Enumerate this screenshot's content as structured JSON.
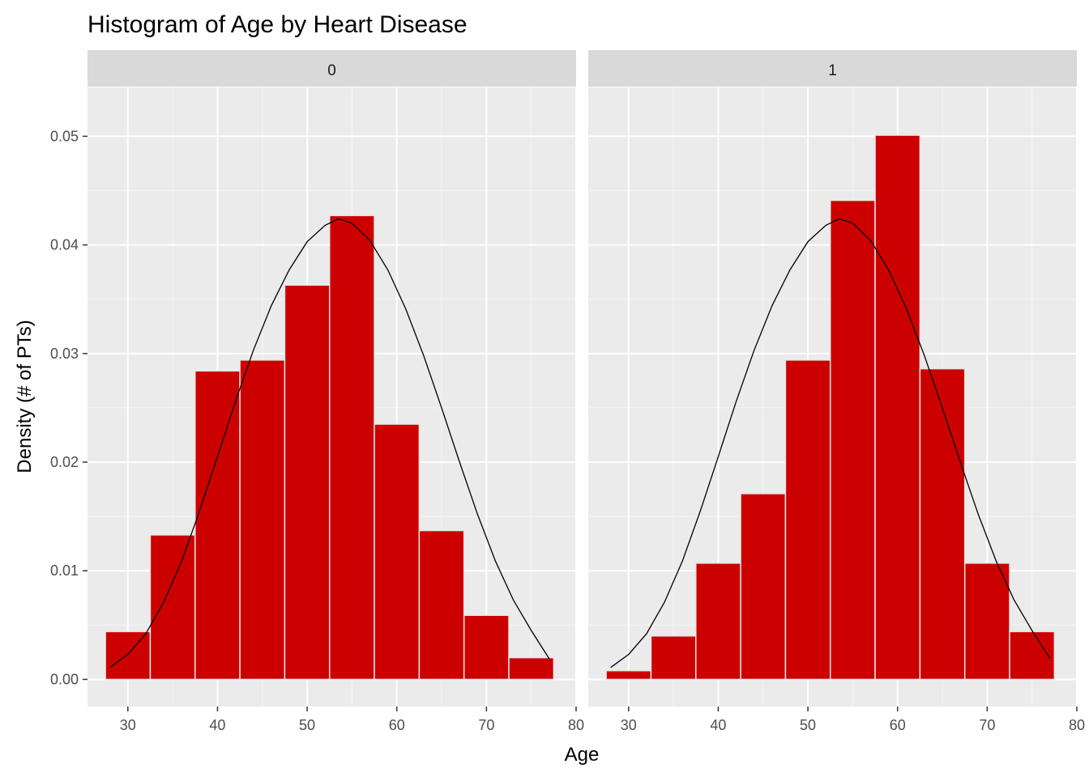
{
  "chart_data": {
    "type": "bar",
    "title": "Histogram of Age by Heart Disease",
    "xlabel": "Age",
    "ylabel": "Density (# of PTs)",
    "xlim": [
      25.5,
      80
    ],
    "ylim": [
      -0.0025,
      0.0545
    ],
    "x_ticks": [
      30,
      40,
      50,
      60,
      70,
      80
    ],
    "y_ticks": [
      0.0,
      0.01,
      0.02,
      0.03,
      0.04,
      0.05
    ],
    "y_tick_labels": [
      "0.00",
      "0.01",
      "0.02",
      "0.03",
      "0.04",
      "0.05"
    ],
    "grid": true,
    "bin_edges": [
      27.5,
      32.5,
      37.5,
      42.5,
      47.5,
      52.5,
      57.5,
      62.5,
      67.5,
      72.5,
      77.5
    ],
    "facets": [
      {
        "label": "0",
        "values": [
          0.0044,
          0.0133,
          0.0284,
          0.0294,
          0.0363,
          0.0427,
          0.0235,
          0.0137,
          0.0059,
          0.002
        ],
        "density_curve": {
          "x": [
            28,
            30,
            32,
            34,
            36,
            38,
            40,
            42,
            44,
            46,
            48,
            50,
            52,
            53.5,
            55,
            57,
            59,
            61,
            63,
            65,
            67,
            69,
            71,
            73,
            75,
            77
          ],
          "y": [
            0.0011,
            0.0023,
            0.0042,
            0.0071,
            0.0109,
            0.0155,
            0.0205,
            0.0256,
            0.0303,
            0.0344,
            0.0377,
            0.0403,
            0.0418,
            0.0424,
            0.042,
            0.0404,
            0.0377,
            0.0341,
            0.0298,
            0.025,
            0.02,
            0.0152,
            0.0109,
            0.0073,
            0.0045,
            0.0019
          ]
        }
      },
      {
        "label": "1",
        "values": [
          0.0008,
          0.004,
          0.0107,
          0.0171,
          0.0294,
          0.0441,
          0.0501,
          0.0286,
          0.0107,
          0.0044
        ],
        "density_curve": {
          "x": [
            28,
            30,
            32,
            34,
            36,
            38,
            40,
            42,
            44,
            46,
            48,
            50,
            52,
            53.5,
            55,
            57,
            59,
            61,
            63,
            65,
            67,
            69,
            71,
            73,
            75,
            77
          ],
          "y": [
            0.0011,
            0.0023,
            0.0042,
            0.0071,
            0.0109,
            0.0155,
            0.0205,
            0.0256,
            0.0303,
            0.0344,
            0.0377,
            0.0403,
            0.0418,
            0.0424,
            0.042,
            0.0404,
            0.0377,
            0.0341,
            0.0298,
            0.025,
            0.02,
            0.0152,
            0.0109,
            0.0073,
            0.0045,
            0.0019
          ]
        }
      }
    ]
  },
  "colors": {
    "panel_bg": "#ebebeb",
    "strip_bg": "#d9d9d9",
    "grid_major": "#ffffff",
    "grid_minor": "#f5f5f5",
    "bar_fill": "#cd0000",
    "bar_stroke": "#e6e6e6",
    "curve": "#000000",
    "tick": "#333333"
  }
}
